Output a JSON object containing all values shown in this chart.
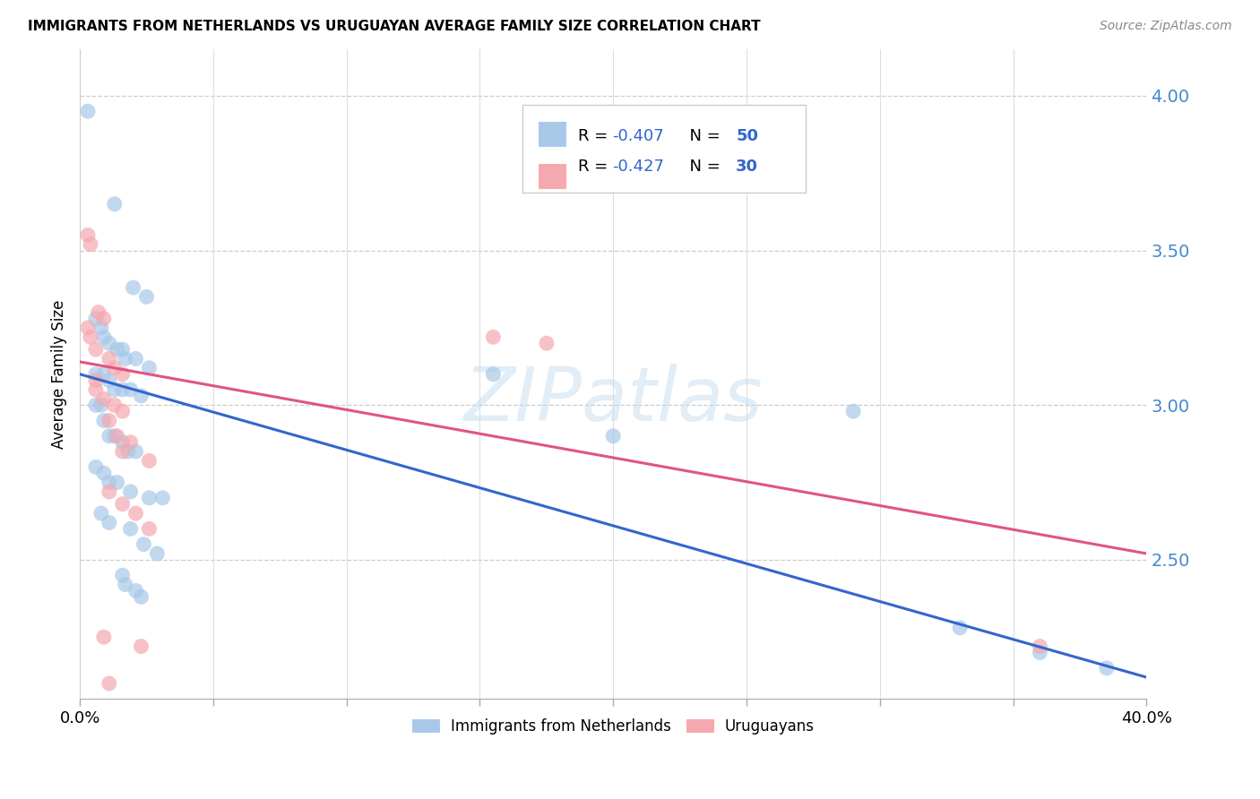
{
  "title": "IMMIGRANTS FROM NETHERLANDS VS URUGUAYAN AVERAGE FAMILY SIZE CORRELATION CHART",
  "source": "Source: ZipAtlas.com",
  "ylabel": "Average Family Size",
  "right_yticks": [
    4.0,
    3.5,
    3.0,
    2.5
  ],
  "watermark": "ZIPatlas",
  "legend_label_blue": "Immigrants from Netherlands",
  "legend_label_pink": "Uruguayans",
  "blue_color": "#a8c8e8",
  "pink_color": "#f4a8b0",
  "trendline_blue_color": "#3366cc",
  "trendline_pink_color": "#e05580",
  "blue_points": [
    [
      0.003,
      3.95
    ],
    [
      0.013,
      3.65
    ],
    [
      0.02,
      3.38
    ],
    [
      0.025,
      3.35
    ],
    [
      0.006,
      3.28
    ],
    [
      0.008,
      3.25
    ],
    [
      0.009,
      3.22
    ],
    [
      0.011,
      3.2
    ],
    [
      0.014,
      3.18
    ],
    [
      0.016,
      3.18
    ],
    [
      0.017,
      3.15
    ],
    [
      0.021,
      3.15
    ],
    [
      0.026,
      3.12
    ],
    [
      0.006,
      3.1
    ],
    [
      0.009,
      3.1
    ],
    [
      0.011,
      3.08
    ],
    [
      0.013,
      3.05
    ],
    [
      0.016,
      3.05
    ],
    [
      0.019,
      3.05
    ],
    [
      0.023,
      3.03
    ],
    [
      0.006,
      3.0
    ],
    [
      0.008,
      3.0
    ],
    [
      0.009,
      2.95
    ],
    [
      0.011,
      2.9
    ],
    [
      0.013,
      2.9
    ],
    [
      0.016,
      2.88
    ],
    [
      0.018,
      2.85
    ],
    [
      0.021,
      2.85
    ],
    [
      0.006,
      2.8
    ],
    [
      0.009,
      2.78
    ],
    [
      0.011,
      2.75
    ],
    [
      0.014,
      2.75
    ],
    [
      0.019,
      2.72
    ],
    [
      0.026,
      2.7
    ],
    [
      0.031,
      2.7
    ],
    [
      0.008,
      2.65
    ],
    [
      0.011,
      2.62
    ],
    [
      0.019,
      2.6
    ],
    [
      0.024,
      2.55
    ],
    [
      0.029,
      2.52
    ],
    [
      0.016,
      2.45
    ],
    [
      0.017,
      2.42
    ],
    [
      0.021,
      2.4
    ],
    [
      0.023,
      2.38
    ],
    [
      0.155,
      3.1
    ],
    [
      0.29,
      2.98
    ],
    [
      0.36,
      2.2
    ],
    [
      0.385,
      2.15
    ],
    [
      0.2,
      2.9
    ],
    [
      0.33,
      2.28
    ]
  ],
  "pink_points": [
    [
      0.003,
      3.55
    ],
    [
      0.004,
      3.52
    ],
    [
      0.007,
      3.3
    ],
    [
      0.009,
      3.28
    ],
    [
      0.003,
      3.25
    ],
    [
      0.004,
      3.22
    ],
    [
      0.006,
      3.18
    ],
    [
      0.011,
      3.15
    ],
    [
      0.013,
      3.12
    ],
    [
      0.016,
      3.1
    ],
    [
      0.006,
      3.08
    ],
    [
      0.006,
      3.05
    ],
    [
      0.009,
      3.02
    ],
    [
      0.013,
      3.0
    ],
    [
      0.016,
      2.98
    ],
    [
      0.011,
      2.95
    ],
    [
      0.014,
      2.9
    ],
    [
      0.019,
      2.88
    ],
    [
      0.016,
      2.85
    ],
    [
      0.026,
      2.82
    ],
    [
      0.011,
      2.72
    ],
    [
      0.016,
      2.68
    ],
    [
      0.021,
      2.65
    ],
    [
      0.026,
      2.6
    ],
    [
      0.009,
      2.25
    ],
    [
      0.023,
      2.22
    ],
    [
      0.155,
      3.22
    ],
    [
      0.175,
      3.2
    ],
    [
      0.36,
      2.22
    ],
    [
      0.011,
      2.1
    ]
  ],
  "xlim": [
    0.0,
    0.4
  ],
  "ylim": [
    2.05,
    4.15
  ],
  "blue_trend_x": [
    0.0,
    0.4
  ],
  "blue_trend_y": [
    3.1,
    2.12
  ],
  "pink_trend_x": [
    0.0,
    0.4
  ],
  "pink_trend_y": [
    3.14,
    2.52
  ],
  "xtick_positions": [
    0.0,
    0.05,
    0.1,
    0.15,
    0.2,
    0.25,
    0.3,
    0.35,
    0.4
  ],
  "grid_x_positions": [
    0.05,
    0.1,
    0.15,
    0.2,
    0.25,
    0.3,
    0.35
  ]
}
